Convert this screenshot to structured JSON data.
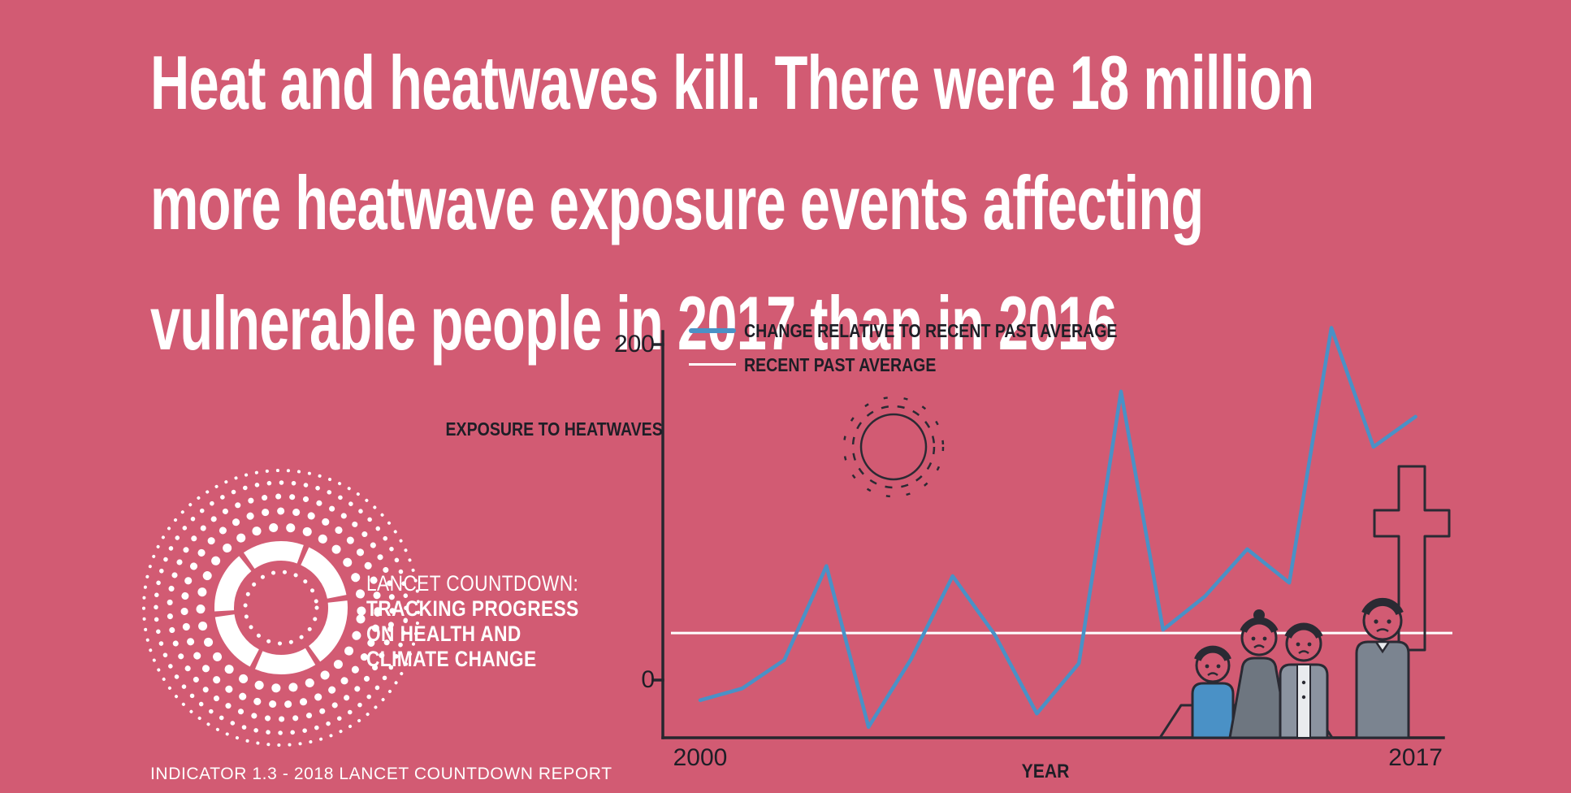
{
  "colors": {
    "background": "#d25b73",
    "text_light": "#ffffff",
    "text_dark": "#1e1e26",
    "line_blue": "#4a91c6",
    "line_white": "#ffffff"
  },
  "title": {
    "lines": [
      "Heat and heatwaves kill. There were 18 million",
      "more heatwave exposure events affecting",
      "vulnerable people in 2017 than in 2016"
    ]
  },
  "logo": {
    "lines": [
      "LANCET COUNTDOWN:",
      "TRACKING PROGRESS",
      "ON HEALTH AND",
      "CLIMATE CHANGE"
    ]
  },
  "footer": {
    "text": "INDICATOR 1.3 - 2018 LANCET COUNTDOWN REPORT"
  },
  "illustrations": {
    "sun": "dashed-sun-icon",
    "funeral": "mourners-with-cross-and-casket",
    "logo_mark": "dotted-concentric-rings"
  },
  "chart_data": {
    "type": "line",
    "x": [
      2000,
      2001,
      2002,
      2003,
      2004,
      2005,
      2006,
      2007,
      2008,
      2009,
      2010,
      2011,
      2012,
      2013,
      2014,
      2015,
      2016,
      2017
    ],
    "series": [
      {
        "name": "CHANGE RELATIVE TO RECENT PAST AVERAGE",
        "color": "#4a91c6",
        "values": [
          -12,
          -5,
          12,
          68,
          -28,
          12,
          62,
          27,
          -20,
          10,
          172,
          30,
          50,
          78,
          58,
          210,
          139,
          157
        ]
      },
      {
        "name": "RECENT PAST AVERAGE",
        "color": "#ffffff",
        "type": "hline",
        "value": 28
      }
    ],
    "xlabel": "YEAR",
    "ylabel": "EXPOSURE TO HEATWAVES",
    "ytick_labels": [
      "200",
      "0"
    ],
    "ytick_values": [
      200,
      0
    ],
    "xtick_labels": [
      "2000",
      "2017"
    ],
    "xlim": [
      2000,
      2017
    ],
    "ylim": [
      -35,
      208
    ],
    "grid": false,
    "legend_position": "top-left"
  }
}
